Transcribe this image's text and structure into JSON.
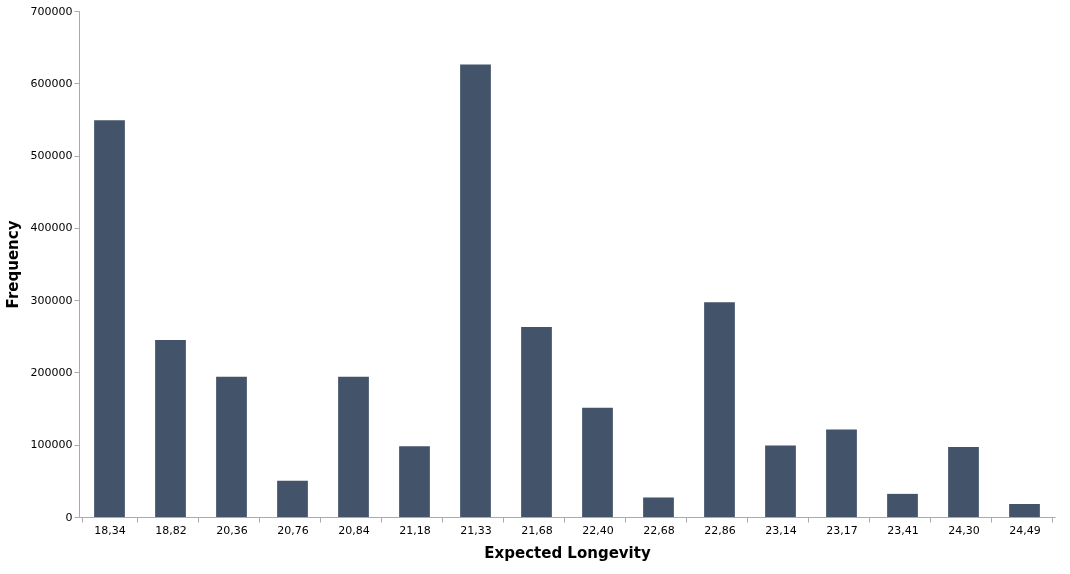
{
  "chart_data": {
    "type": "bar",
    "xlabel": "Expected Longevity",
    "ylabel": "Frequency",
    "categories": [
      "18,34",
      "18,82",
      "20,36",
      "20,76",
      "20,84",
      "21,18",
      "21,33",
      "21,68",
      "22,40",
      "22,68",
      "22,86",
      "23,14",
      "23,17",
      "23,41",
      "24,30",
      "24,49"
    ],
    "values": [
      549000,
      245000,
      194000,
      50000,
      194000,
      98000,
      626000,
      263000,
      151000,
      27000,
      297000,
      99000,
      121000,
      32000,
      97000,
      18000
    ],
    "color": "#435369",
    "ylim": [
      0,
      700000
    ],
    "yticks": [
      0,
      100000,
      200000,
      300000,
      400000,
      500000,
      600000,
      700000
    ],
    "grid": false
  }
}
